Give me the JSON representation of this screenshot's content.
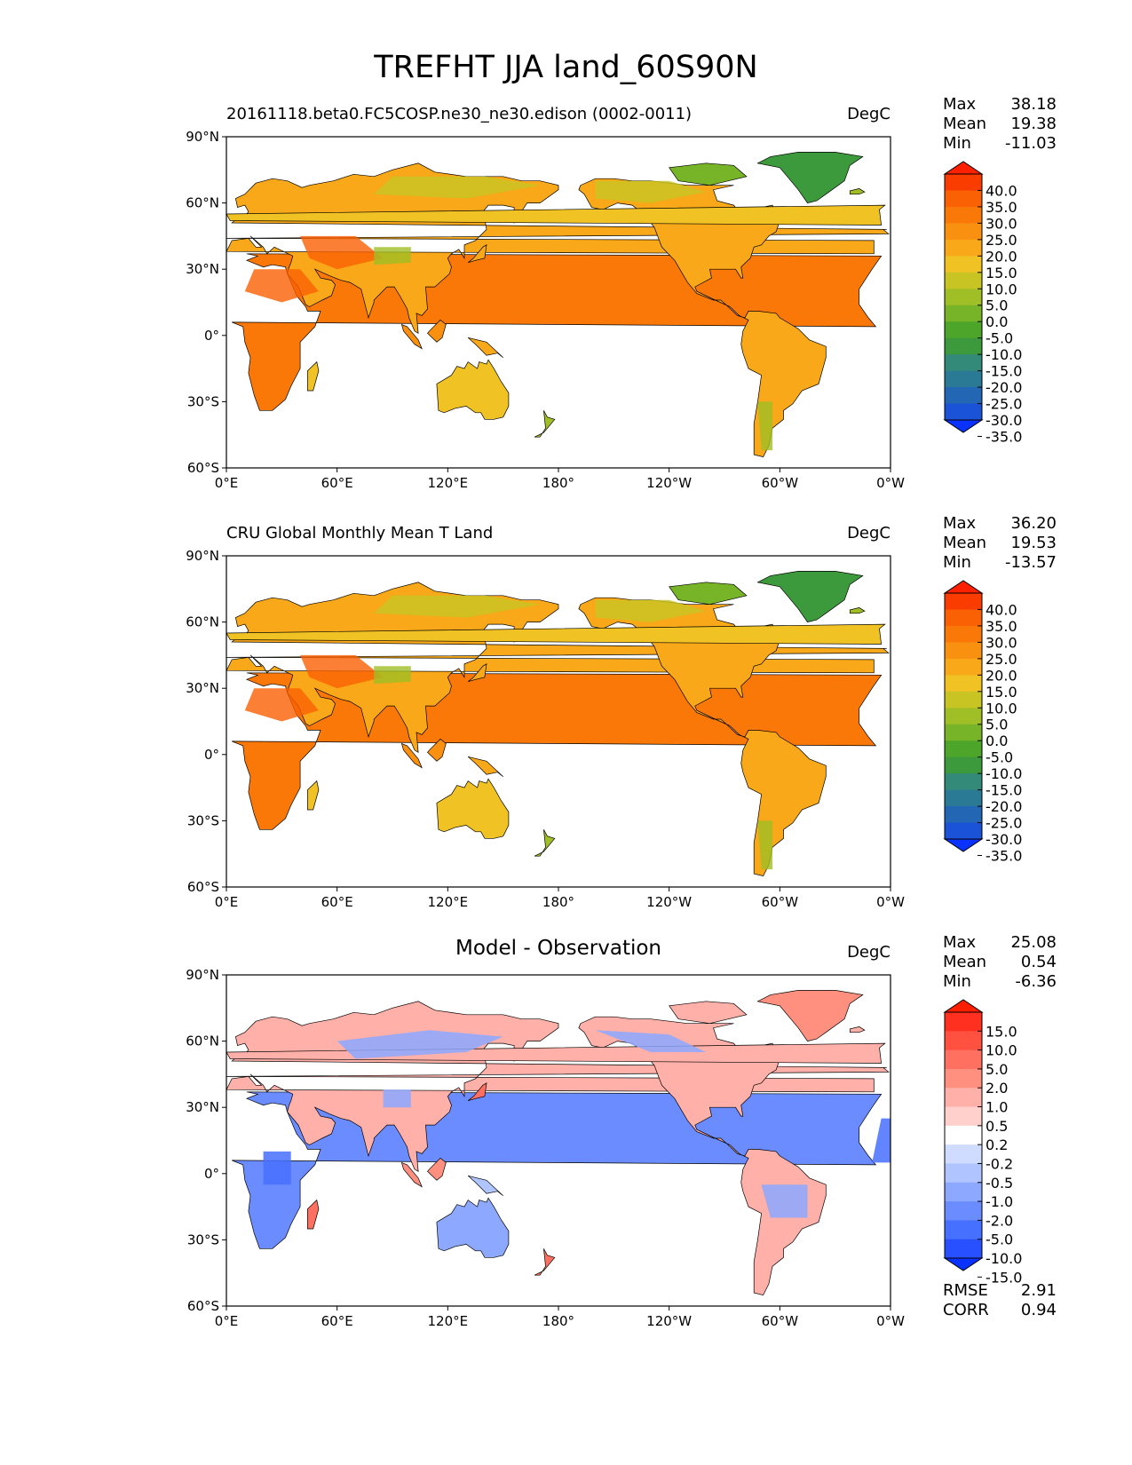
{
  "figure_title": "TREFHT JJA land_60S90N",
  "panels": [
    {
      "subtitle": "20161118.beta0.FC5COSP.ne30_ne30.edison (0002-0011)",
      "units": "DegC",
      "stats": [
        {
          "label": "Max",
          "value": "38.18"
        },
        {
          "label": "Mean",
          "value": "19.38"
        },
        {
          "label": "Min",
          "value": "-11.03"
        }
      ],
      "colorbar_ticks": [
        "40.0",
        "35.0",
        "30.0",
        "25.0",
        "20.0",
        "15.0",
        "10.0",
        "5.0",
        "0.0",
        "-5.0",
        "-10.0",
        "-15.0",
        "-20.0",
        "-25.0",
        "-30.0",
        "-35.0"
      ],
      "colormap": "temperature"
    },
    {
      "subtitle": "CRU Global Monthly Mean T Land",
      "units": "DegC",
      "stats": [
        {
          "label": "Max",
          "value": "36.20"
        },
        {
          "label": "Mean",
          "value": "19.53"
        },
        {
          "label": "Min",
          "value": "-13.57"
        }
      ],
      "colorbar_ticks": [
        "40.0",
        "35.0",
        "30.0",
        "25.0",
        "20.0",
        "15.0",
        "10.0",
        "5.0",
        "0.0",
        "-5.0",
        "-10.0",
        "-15.0",
        "-20.0",
        "-25.0",
        "-30.0",
        "-35.0"
      ],
      "colormap": "temperature"
    },
    {
      "title": "Model - Observation",
      "units": "DegC",
      "stats": [
        {
          "label": "Max",
          "value": "25.08"
        },
        {
          "label": "Mean",
          "value": "0.54"
        },
        {
          "label": "Min",
          "value": "-6.36"
        }
      ],
      "colorbar_ticks": [
        "15.0",
        "10.0",
        "5.0",
        "2.0",
        "1.0",
        "0.5",
        "0.2",
        "-0.2",
        "-0.5",
        "-1.0",
        "-2.0",
        "-5.0",
        "-10.0",
        "-15.0"
      ],
      "colormap": "difference"
    }
  ],
  "bottom_stats": [
    {
      "label": "RMSE",
      "value": "2.91"
    },
    {
      "label": "CORR",
      "value": "0.94"
    }
  ],
  "axes": {
    "lat_ticks": [
      "90°N",
      "60°N",
      "30°N",
      "0°",
      "30°S",
      "60°S"
    ],
    "lon_ticks": [
      "0°E",
      "60°E",
      "120°E",
      "180°",
      "120°W",
      "60°W",
      "0°W"
    ]
  },
  "colors": {
    "temperature": [
      "#0a32ff",
      "#1a52d8",
      "#2266b4",
      "#2a7a96",
      "#348a78",
      "#3c9a3c",
      "#4da52a",
      "#78b428",
      "#a0be26",
      "#c8c424",
      "#f0c224",
      "#f8a818",
      "#fa9010",
      "#fa7808",
      "#fa6004",
      "#fa3c00",
      "#ff2000"
    ],
    "difference": [
      "#0a32ff",
      "#2850ff",
      "#4670ff",
      "#6a8cff",
      "#8ca8ff",
      "#b0c4ff",
      "#d0dcff",
      "#ffffff",
      "#ffd0cc",
      "#ffb0a8",
      "#ff9080",
      "#ff7060",
      "#ff5040",
      "#ff3020",
      "#ff1e00"
    ]
  }
}
